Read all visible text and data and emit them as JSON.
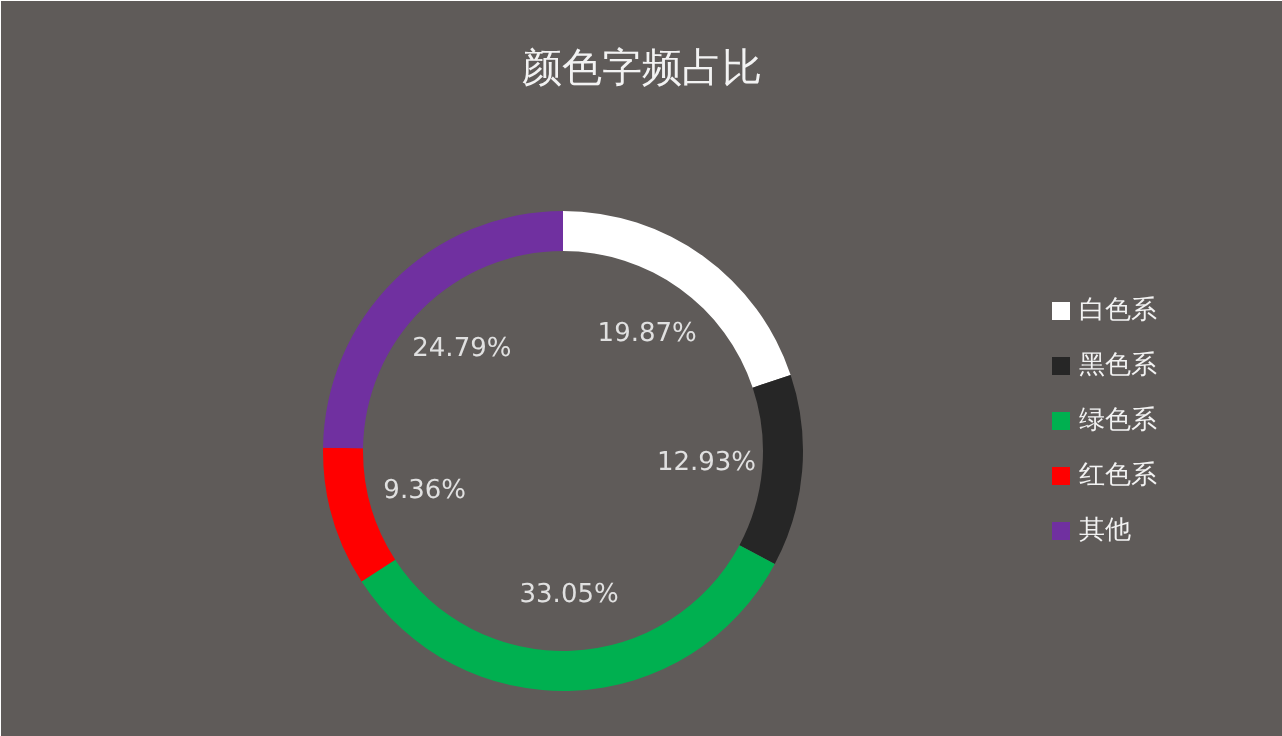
{
  "chart_data": {
    "type": "donut",
    "title": "颜色字频占比",
    "categories": [
      "白色系",
      "黑色系",
      "绿色系",
      "红色系",
      "其他"
    ],
    "values": [
      19.87,
      12.93,
      33.05,
      9.36,
      24.79
    ],
    "colors": [
      "#ffffff",
      "#262626",
      "#00b050",
      "#ff0000",
      "#7030a0"
    ],
    "value_labels": [
      "19.87%",
      "12.93%",
      "33.05%",
      "9.36%",
      "24.79%"
    ],
    "legend": "right"
  }
}
